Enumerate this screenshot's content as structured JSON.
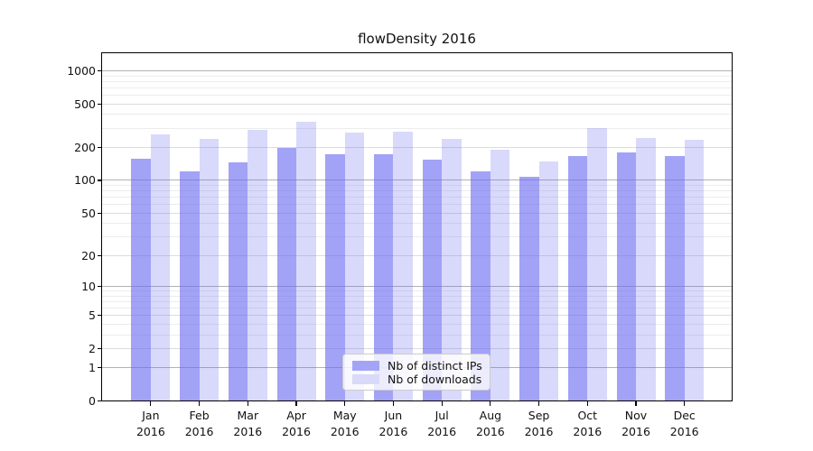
{
  "chart_data": {
    "type": "bar",
    "title": "flowDensity 2016",
    "categories": [
      "Jan",
      "Feb",
      "Mar",
      "Apr",
      "May",
      "Jun",
      "Jul",
      "Aug",
      "Sep",
      "Oct",
      "Nov",
      "Dec"
    ],
    "x_year": "2016",
    "series": [
      {
        "name": "Nb of distinct IPs",
        "color": "rgba(105,105,240,0.62)",
        "solid_color": "#a4a4f6",
        "values": [
          158,
          122,
          145,
          200,
          172,
          172,
          155,
          120,
          108,
          168,
          180,
          166
        ]
      },
      {
        "name": "Nb of downloads",
        "color": "rgba(105,105,240,0.25)",
        "solid_color": "#d9d9fa",
        "values": [
          265,
          240,
          288,
          346,
          274,
          280,
          240,
          190,
          148,
          298,
          245,
          234
        ]
      }
    ],
    "y_axis": {
      "scale": "log1p",
      "tick_values": [
        0,
        1,
        2,
        5,
        10,
        20,
        50,
        100,
        200,
        500,
        1000
      ],
      "tick_labels": [
        "0",
        "1",
        "2",
        "5",
        "10",
        "20",
        "50",
        "100",
        "200",
        "500",
        "1000"
      ]
    },
    "grid": {
      "major_color": "#b2b2b2",
      "mid_color": "#dcdcdc",
      "minor_color": "#ececec"
    },
    "legend": {
      "position": "bottom-center-inside"
    }
  }
}
